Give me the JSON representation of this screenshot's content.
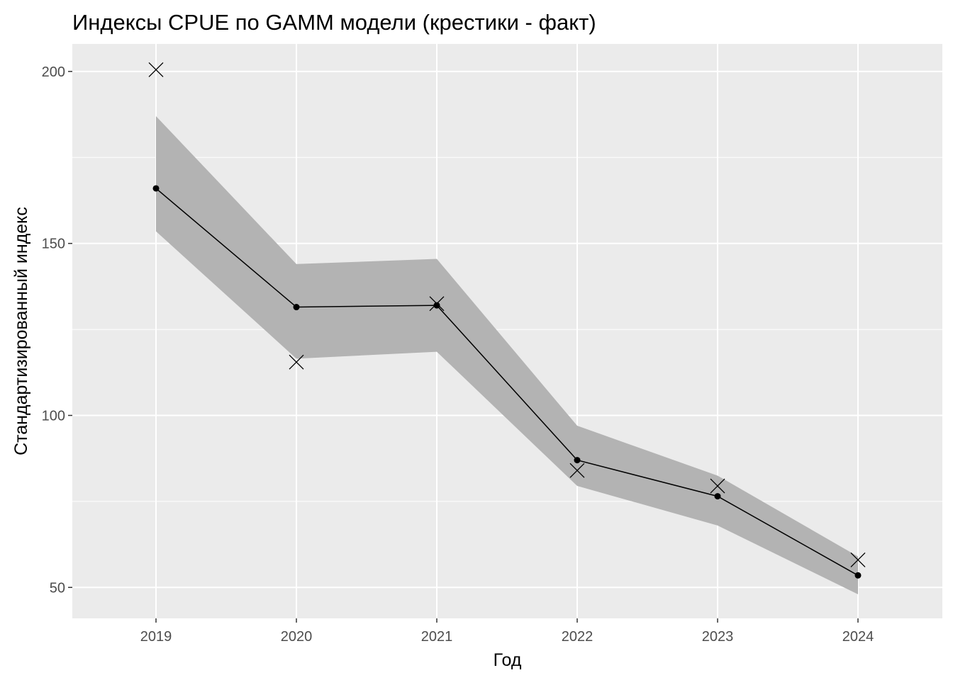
{
  "chart_data": {
    "type": "line",
    "title": "Индексы CPUE по GAMM модели (крестики - факт)",
    "xlabel": "Год",
    "ylabel": "Стандартизированный индекс",
    "categories": [
      "2019",
      "2020",
      "2021",
      "2022",
      "2023",
      "2024"
    ],
    "ylim": [
      41,
      208
    ],
    "yticks": [
      50,
      100,
      150,
      200
    ],
    "grid": true,
    "legend": "none",
    "series": [
      {
        "kind": "model",
        "marker": "point",
        "values": [
          166,
          131.5,
          132,
          87,
          76.5,
          53.5
        ]
      },
      {
        "kind": "ci-band",
        "lower": [
          153.5,
          116.5,
          118.5,
          79.5,
          68,
          48
        ],
        "upper": [
          187,
          144,
          145.5,
          97,
          82.5,
          59
        ]
      },
      {
        "kind": "observed",
        "marker": "cross",
        "values": [
          200.5,
          115.5,
          132.5,
          84,
          79.5,
          58
        ]
      }
    ],
    "colors": {
      "panel": "#ebebeb",
      "grid": "#ffffff",
      "band": "#b3b3b3",
      "line": "#000000",
      "tick_text": "#4d4d4d"
    }
  }
}
